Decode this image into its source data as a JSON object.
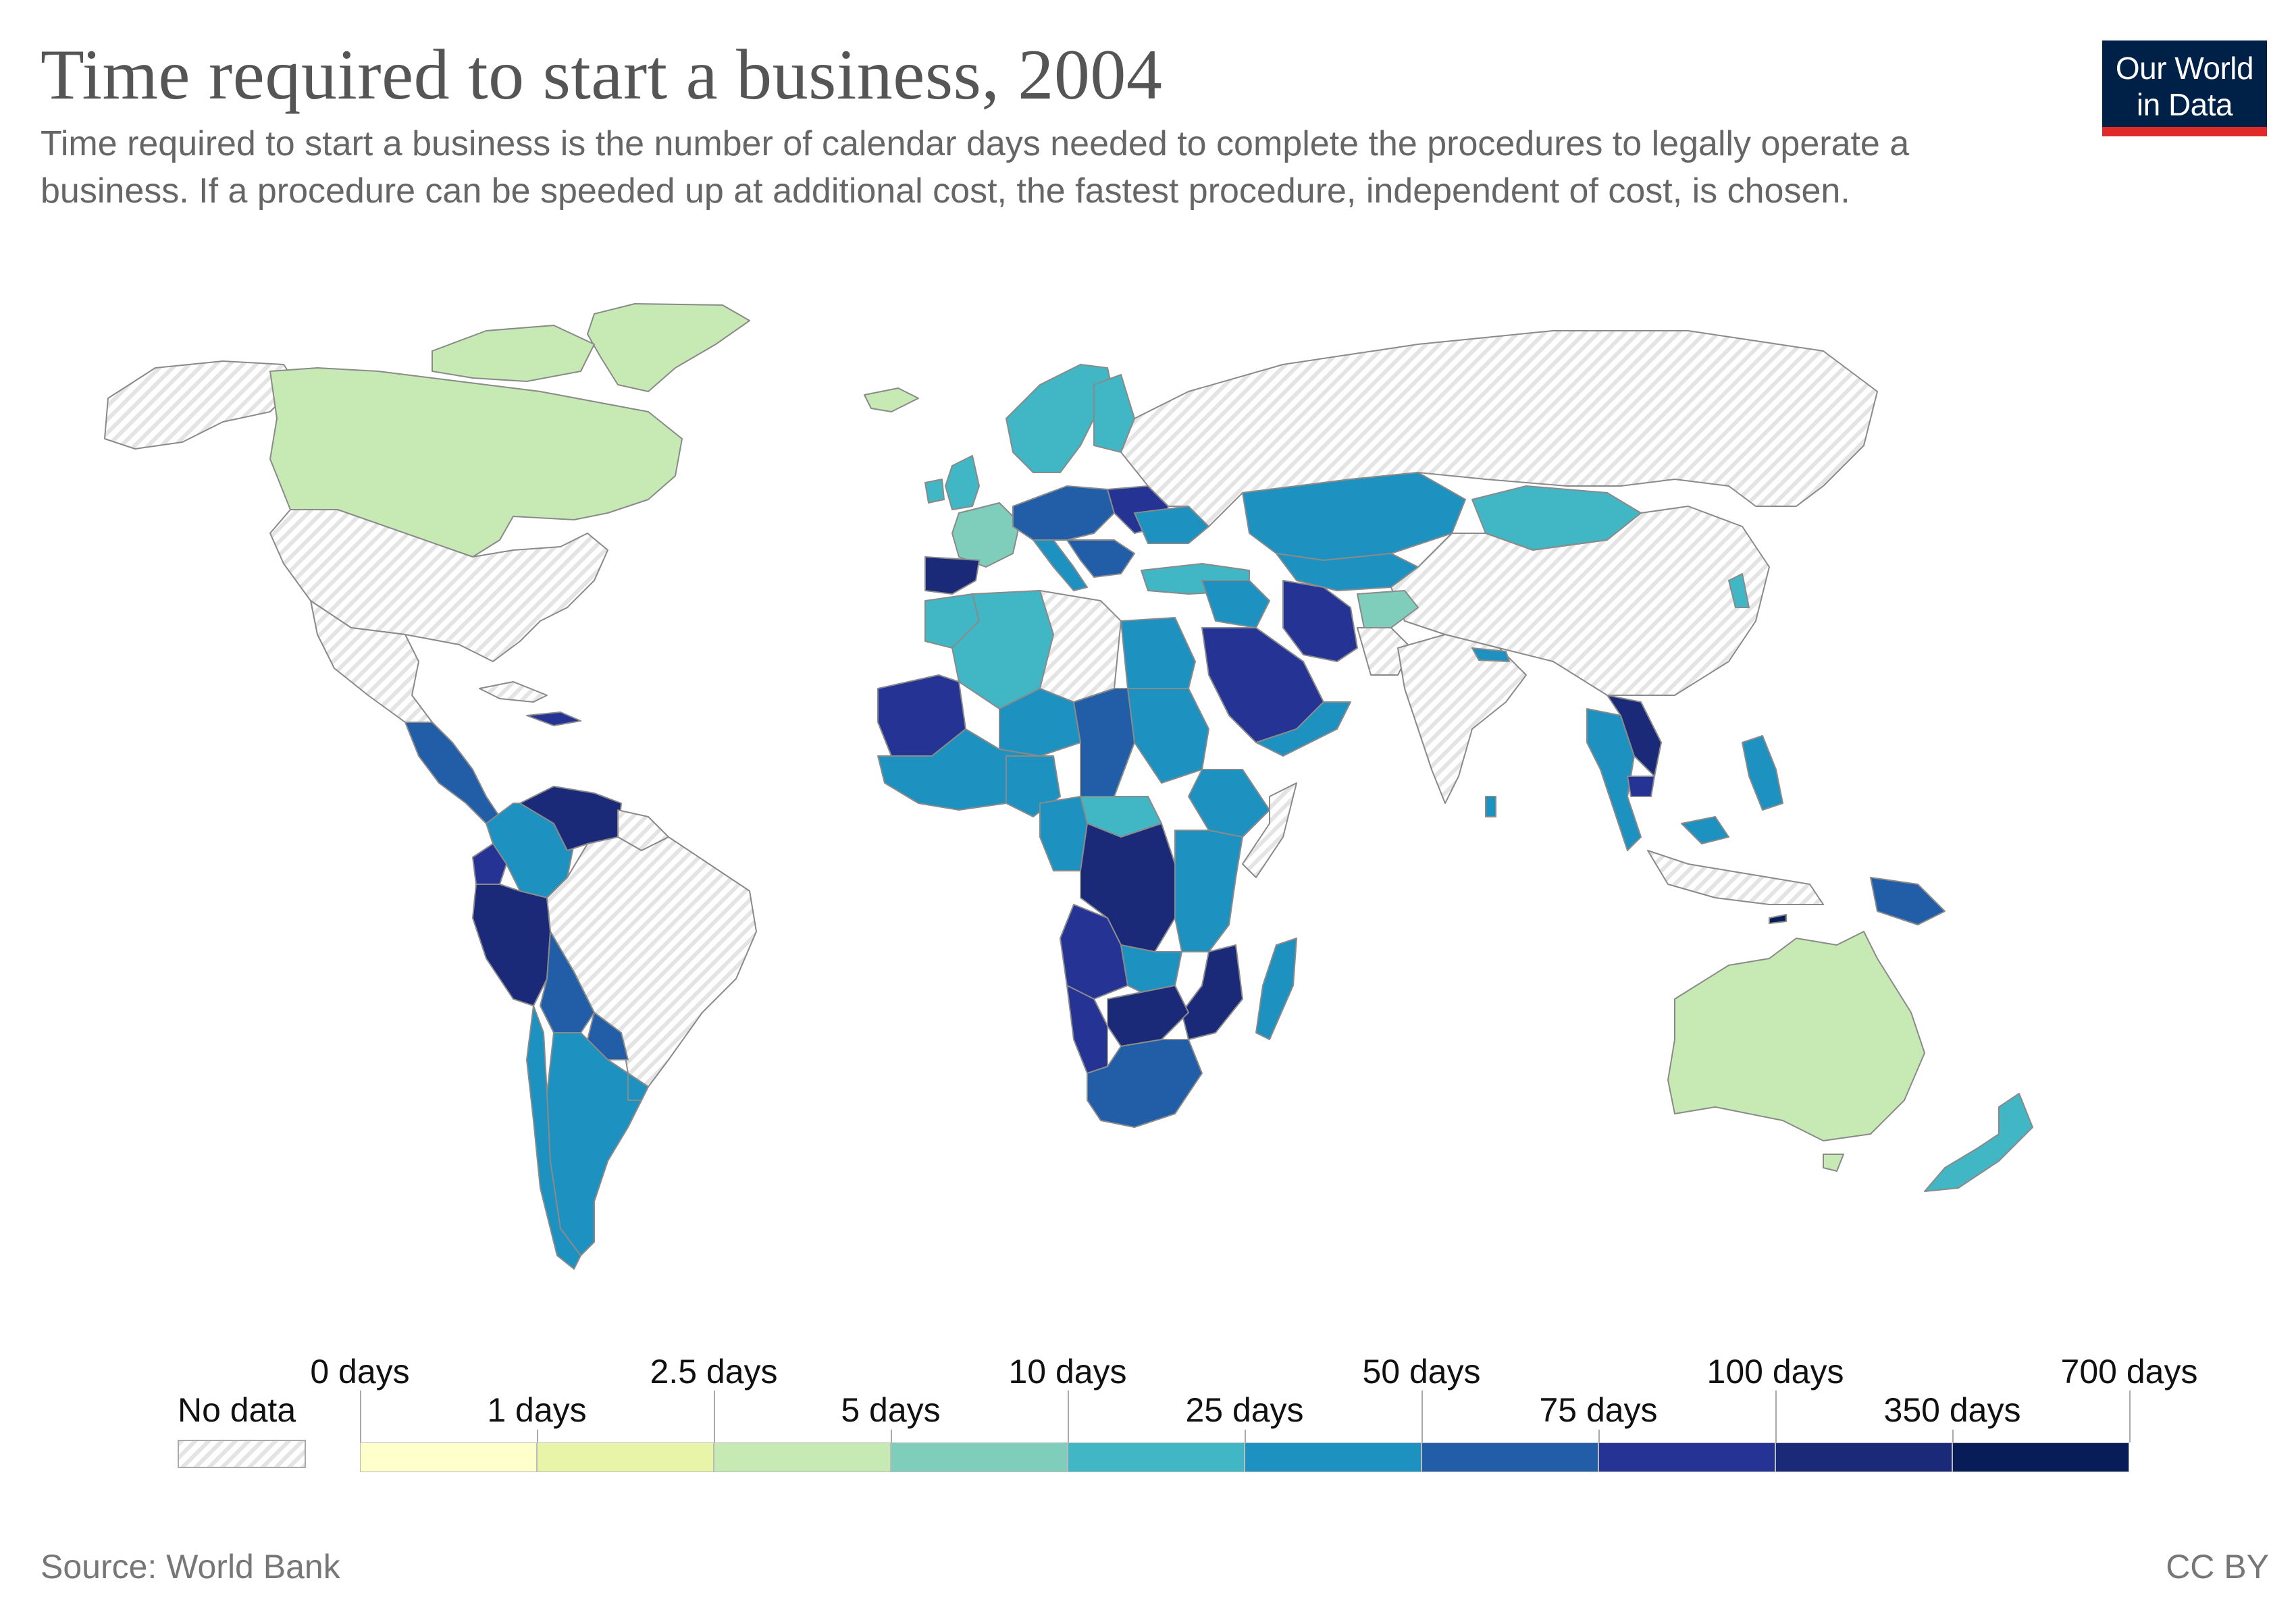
{
  "title": "Time required to start a business, 2004",
  "subtitle": "Time required to start a business is the number of calendar days needed to complete the procedures to legally operate a business. If a procedure can be speeded up at additional cost, the fastest procedure, independent of cost, is chosen.",
  "logo": {
    "line1": "Our World",
    "line2": "in Data"
  },
  "source": "Source: World Bank",
  "license": "CC BY",
  "colors": {
    "no_data_stripe": "#e4e4e4",
    "border": "#8a8a8a",
    "logo_bg": "#002147",
    "logo_bar": "#e02a2a"
  },
  "legend": {
    "no_data_label": "No data",
    "bins": [
      {
        "from": "0 days",
        "to": "1 days",
        "color": "#ffffcc"
      },
      {
        "from": "1 days",
        "to": "2.5 days",
        "color": "#e8f5a8"
      },
      {
        "from": "2.5 days",
        "to": "5 days",
        "color": "#c7e9b4"
      },
      {
        "from": "5 days",
        "to": "10 days",
        "color": "#7fcdbb"
      },
      {
        "from": "10 days",
        "to": "25 days",
        "color": "#41b6c4"
      },
      {
        "from": "25 days",
        "to": "50 days",
        "color": "#1d91c0"
      },
      {
        "from": "50 days",
        "to": "75 days",
        "color": "#225ea8"
      },
      {
        "from": "75 days",
        "to": "100 days",
        "color": "#253494"
      },
      {
        "from": "100 days",
        "to": "350 days",
        "color": "#1a2a78"
      },
      {
        "from": "350 days",
        "to": "700 days",
        "color": "#081d58"
      }
    ],
    "upper_labels": [
      "0 days",
      "2.5 days",
      "10 days",
      "50 days",
      "100 days",
      "700 days"
    ],
    "lower_labels": [
      "1 days",
      "5 days",
      "25 days",
      "75 days",
      "350 days"
    ]
  },
  "chart_data": {
    "type": "choropleth",
    "year": 2004,
    "unit": "days",
    "regions": [
      {
        "name": "Canada",
        "bin": "2.5 days – 5 days"
      },
      {
        "name": "Greenland",
        "bin": "2.5 days – 5 days"
      },
      {
        "name": "Australia",
        "bin": "2.5 days – 5 days"
      },
      {
        "name": "Iceland",
        "bin": "2.5 days – 5 days"
      },
      {
        "name": "New Zealand",
        "bin": "10 days – 25 days"
      },
      {
        "name": "France",
        "bin": "5 days – 10 days"
      },
      {
        "name": "Afghanistan",
        "bin": "5 days – 10 days"
      },
      {
        "name": "Spain",
        "bin": "100 days – 350 days"
      },
      {
        "name": "Brazil",
        "bin": "No data"
      },
      {
        "name": "United States",
        "bin": "No data"
      },
      {
        "name": "Russia",
        "bin": "No data"
      },
      {
        "name": "China",
        "bin": "No data"
      },
      {
        "name": "India",
        "bin": "No data"
      },
      {
        "name": "Democratic Republic of Congo",
        "bin": "100 days – 350 days"
      },
      {
        "name": "Angola",
        "bin": "100 days – 350 days"
      },
      {
        "name": "Saudi Arabia",
        "bin": "75 days – 100 days"
      },
      {
        "name": "Iran",
        "bin": "75 days – 100 days"
      },
      {
        "name": "Venezuela",
        "bin": "100 days – 350 days"
      },
      {
        "name": "Peru",
        "bin": "100 days – 350 days"
      },
      {
        "name": "Kazakhstan",
        "bin": "25 days – 50 days"
      },
      {
        "name": "Mongolia",
        "bin": "10 days – 25 days"
      },
      {
        "name": "Argentina",
        "bin": "25 days – 50 days"
      },
      {
        "name": "Madagascar",
        "bin": "25 days – 50 days"
      },
      {
        "name": "South Africa",
        "bin": "50 days – 75 days"
      },
      {
        "name": "Papua New Guinea",
        "bin": "50 days – 75 days"
      }
    ]
  }
}
